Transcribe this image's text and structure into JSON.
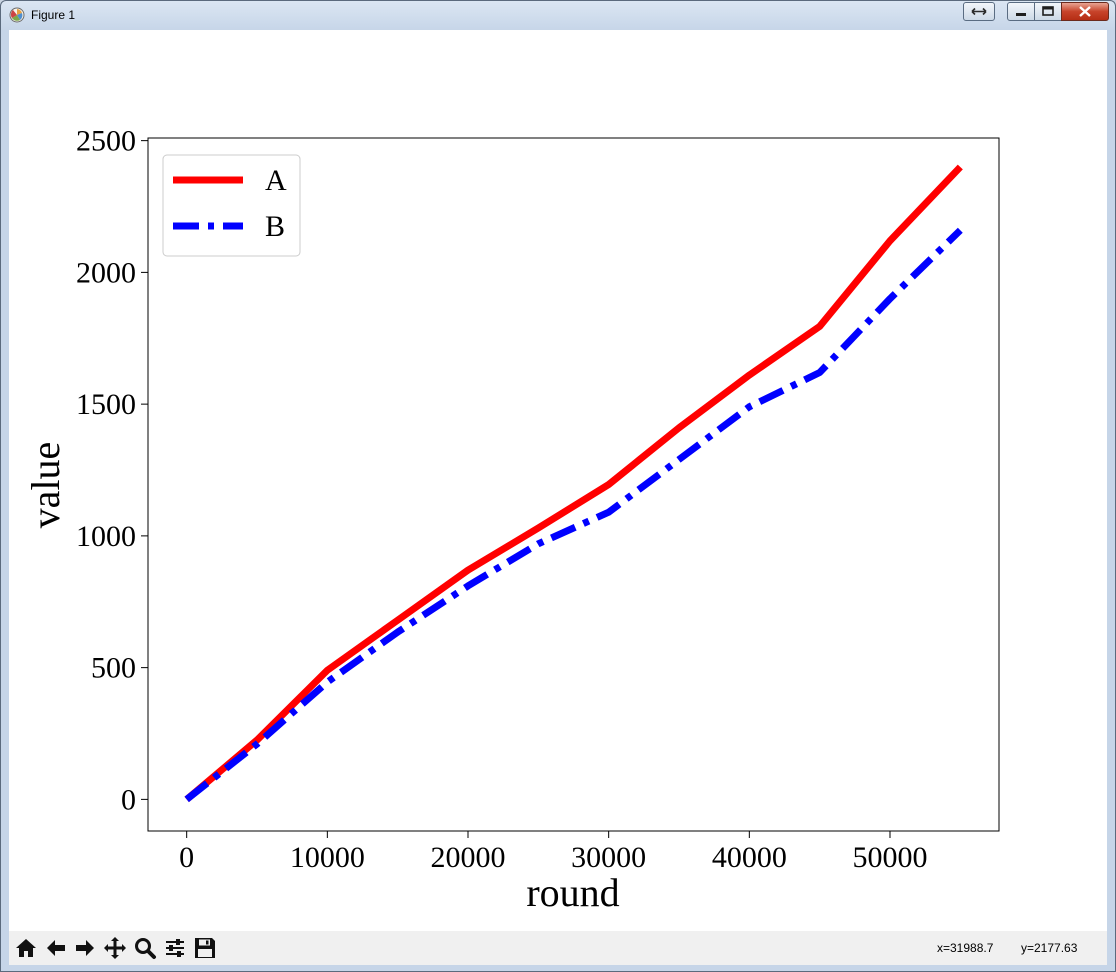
{
  "window": {
    "title": "Figure 1"
  },
  "status": {
    "x_readout": "x=31988.7",
    "y_readout": "y=2177.63"
  },
  "toolbar": {
    "buttons": [
      "home-icon",
      "back-arrow-icon",
      "forward-arrow-icon",
      "pan-icon",
      "zoom-icon",
      "configure-subplots-icon",
      "save-icon"
    ]
  },
  "chart_data": {
    "type": "line",
    "title": "",
    "xlabel": "round",
    "ylabel": "value",
    "xlim": [
      -2750,
      57750
    ],
    "ylim": [
      -120,
      2510
    ],
    "xticks": [
      0,
      10000,
      20000,
      30000,
      40000,
      50000
    ],
    "yticks": [
      0,
      500,
      1000,
      1500,
      2000,
      2500
    ],
    "x": [
      0,
      5000,
      10000,
      15000,
      20000,
      25000,
      30000,
      35000,
      40000,
      45000,
      50000,
      55000
    ],
    "series": [
      {
        "name": "A",
        "color": "#ff0000",
        "style": "solid",
        "values": [
          0,
          225,
          490,
          680,
          870,
          1030,
          1195,
          1410,
          1610,
          1795,
          2120,
          2400
        ]
      },
      {
        "name": "B",
        "color": "#0000ff",
        "style": "dashdot",
        "values": [
          0,
          210,
          445,
          635,
          810,
          970,
          1090,
          1290,
          1490,
          1620,
          1900,
          2160
        ]
      }
    ],
    "legend": "upper-left",
    "grid": false
  }
}
